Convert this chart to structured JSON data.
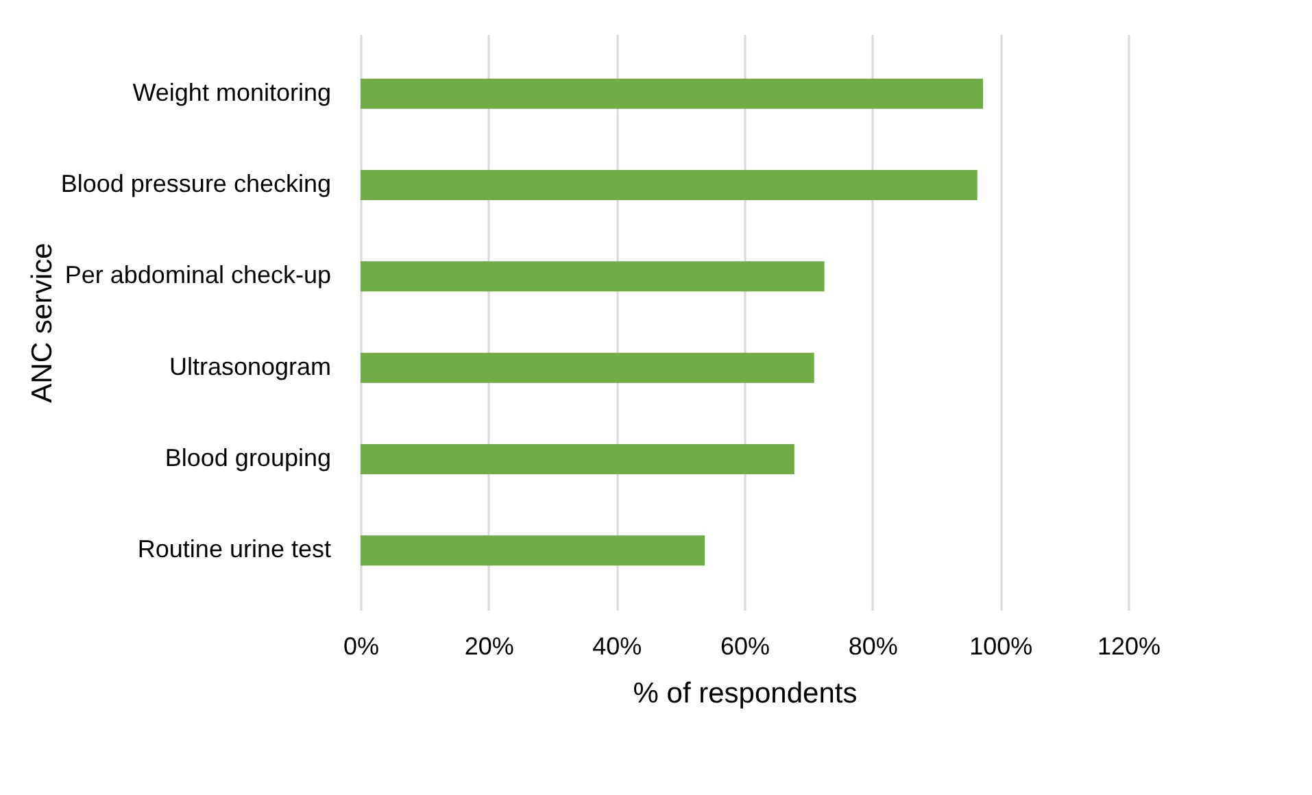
{
  "chart_data": {
    "type": "bar",
    "orientation": "horizontal",
    "xlabel": "% of respondents",
    "ylabel": "ANC service",
    "categories": [
      "Weight monitoring",
      "Blood pressure checking",
      "Per abdominal check-up",
      "Ultrasonogram",
      "Blood grouping",
      "Routine urine test"
    ],
    "values": [
      97.3,
      96.4,
      72.5,
      70.9,
      67.8,
      53.8
    ],
    "color": "#70ad47",
    "xlim": [
      0,
      120
    ],
    "xticks": [
      {
        "value": 0,
        "label": "0%"
      },
      {
        "value": 20,
        "label": "20%"
      },
      {
        "value": 40,
        "label": "40%"
      },
      {
        "value": 60,
        "label": "60%"
      },
      {
        "value": 80,
        "label": "80%"
      },
      {
        "value": 100,
        "label": "100%"
      },
      {
        "value": 120,
        "label": "120%"
      }
    ],
    "grid": "x"
  }
}
